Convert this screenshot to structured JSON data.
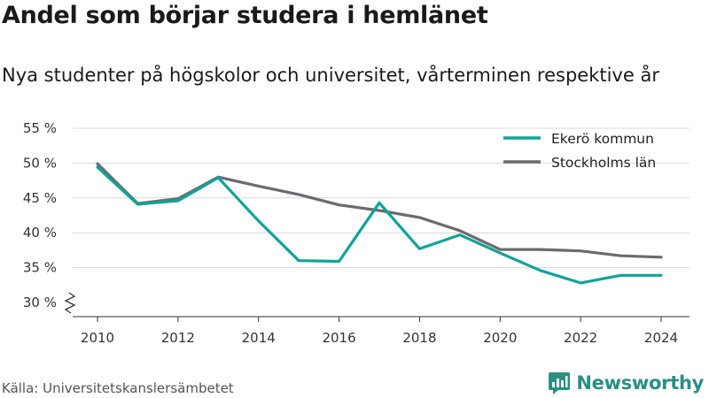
{
  "header": {
    "title": "Andel som börjar studera i hemlänet",
    "subtitle": "Nya studenter på högskolor och universitet, vårterminen respektive år"
  },
  "footer": {
    "source": "Källa: Universitetskanslersämbetet",
    "brand": "Newsworthy",
    "brand_icon": "bar-chart-logo-icon"
  },
  "colors": {
    "ekero": "#0fa39a",
    "stockholm": "#6b6b6e",
    "brand": "#2a8f83",
    "grid": "#d9d9d9"
  },
  "chart_data": {
    "type": "line",
    "title": "Andel som börjar studera i hemlänet",
    "subtitle": "Nya studenter på högskolor och universitet, vårterminen respektive år",
    "xlabel": "",
    "ylabel": "",
    "x": [
      2010,
      2011,
      2012,
      2013,
      2014,
      2015,
      2016,
      2017,
      2018,
      2019,
      2020,
      2021,
      2022,
      2023,
      2024
    ],
    "x_ticks": [
      2010,
      2012,
      2014,
      2016,
      2018,
      2020,
      2022,
      2024
    ],
    "y_ticks": [
      30,
      35,
      40,
      45,
      50,
      55
    ],
    "y_tick_labels": [
      "30 %",
      "35 %",
      "40 %",
      "45 %",
      "50 %",
      "55 %"
    ],
    "ylim": [
      30,
      55
    ],
    "y_axis_break": true,
    "grid": "horizontal",
    "legend_position": "top-right",
    "series": [
      {
        "name": "Ekerö kommun",
        "color": "#0fa39a",
        "values": [
          49.4,
          44.1,
          44.6,
          47.9,
          41.7,
          36.0,
          35.9,
          44.3,
          37.7,
          39.7,
          37.1,
          34.6,
          32.8,
          33.9,
          33.9
        ]
      },
      {
        "name": "Stockholms län",
        "color": "#6b6b6e",
        "values": [
          49.9,
          44.2,
          44.9,
          48.0,
          46.7,
          45.5,
          44.0,
          43.2,
          42.2,
          40.3,
          37.6,
          37.6,
          37.4,
          36.7,
          36.5
        ]
      }
    ]
  }
}
